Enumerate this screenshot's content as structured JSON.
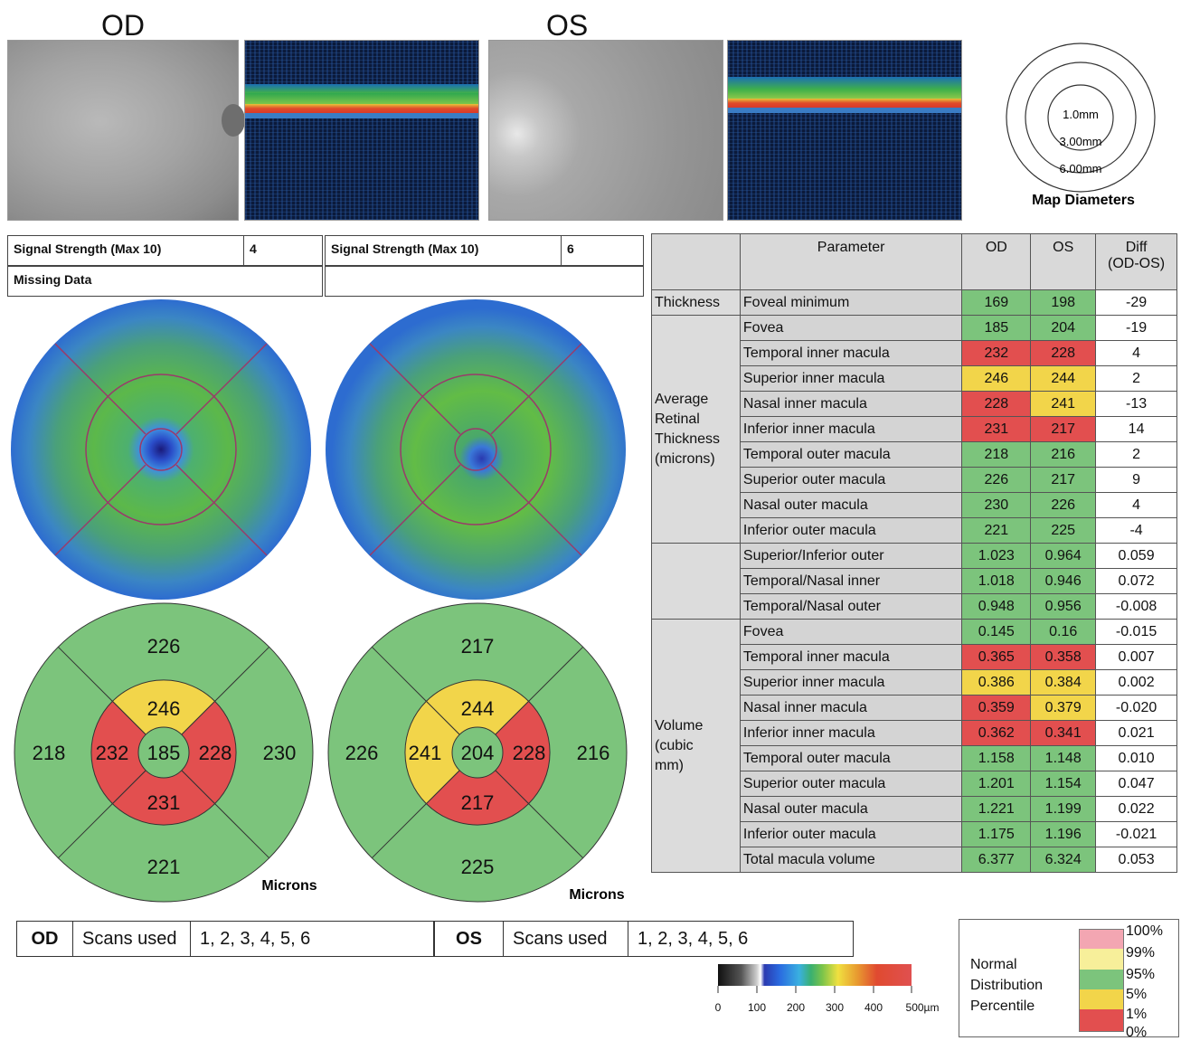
{
  "header": {
    "od_label": "OD",
    "os_label": "OS"
  },
  "map_diameters": {
    "inner": "1.0mm",
    "middle": "3.00mm",
    "outer": "6.00mm",
    "caption": "Map Diameters"
  },
  "signal": {
    "od_label": "Signal Strength (Max 10)",
    "od_value": "4",
    "os_label": "Signal Strength (Max 10)",
    "os_value": "6",
    "missing_label": "Missing Data"
  },
  "sector_map": {
    "units_label": "Microns",
    "od": {
      "superior_outer": "226",
      "superior_inner": "246",
      "temporal_outer": "218",
      "temporal_inner": "232",
      "center": "185",
      "nasal_inner": "228",
      "nasal_outer": "230",
      "inferior_inner": "231",
      "inferior_outer": "221"
    },
    "os": {
      "superior_outer": "217",
      "superior_inner": "244",
      "nasal_outer": "226",
      "nasal_inner": "241",
      "center": "204",
      "temporal_inner": "228",
      "temporal_outer": "216",
      "inferior_inner": "217",
      "inferior_outer": "225"
    }
  },
  "table": {
    "headers": {
      "parameter": "Parameter",
      "od": "OD",
      "os": "OS",
      "diff": "Diff",
      "diff2": "(OD-OS)"
    },
    "groups": {
      "thickness": "Thickness",
      "average": [
        "Average",
        "Retinal",
        "Thickness",
        "(microns)"
      ],
      "volume": [
        "Volume",
        "(cubic",
        "mm)"
      ]
    },
    "rows": [
      {
        "name": "Foveal minimum",
        "od": "169",
        "os": "198",
        "diff": "-29",
        "odc": "g",
        "osc": "g"
      },
      {
        "name": "Fovea",
        "od": "185",
        "os": "204",
        "diff": "-19",
        "odc": "g",
        "osc": "g"
      },
      {
        "name": "Temporal inner macula",
        "od": "232",
        "os": "228",
        "diff": "4",
        "odc": "r",
        "osc": "r"
      },
      {
        "name": "Superior inner macula",
        "od": "246",
        "os": "244",
        "diff": "2",
        "odc": "y",
        "osc": "y"
      },
      {
        "name": "Nasal inner macula",
        "od": "228",
        "os": "241",
        "diff": "-13",
        "odc": "r",
        "osc": "y"
      },
      {
        "name": "Inferior inner macula",
        "od": "231",
        "os": "217",
        "diff": "14",
        "odc": "r",
        "osc": "r"
      },
      {
        "name": "Temporal outer macula",
        "od": "218",
        "os": "216",
        "diff": "2",
        "odc": "g",
        "osc": "g"
      },
      {
        "name": "Superior outer macula",
        "od": "226",
        "os": "217",
        "diff": "9",
        "odc": "g",
        "osc": "g"
      },
      {
        "name": "Nasal outer macula",
        "od": "230",
        "os": "226",
        "diff": "4",
        "odc": "g",
        "osc": "g"
      },
      {
        "name": "Inferior outer macula",
        "od": "221",
        "os": "225",
        "diff": "-4",
        "odc": "g",
        "osc": "g"
      },
      {
        "name": "Superior/Inferior outer",
        "od": "1.023",
        "os": "0.964",
        "diff": "0.059",
        "odc": "g",
        "osc": "g"
      },
      {
        "name": "Temporal/Nasal inner",
        "od": "1.018",
        "os": "0.946",
        "diff": "0.072",
        "odc": "g",
        "osc": "g"
      },
      {
        "name": "Temporal/Nasal outer",
        "od": "0.948",
        "os": "0.956",
        "diff": "-0.008",
        "odc": "g",
        "osc": "g"
      },
      {
        "name": "Fovea",
        "od": "0.145",
        "os": "0.16",
        "diff": "-0.015",
        "odc": "g",
        "osc": "g"
      },
      {
        "name": "Temporal inner macula",
        "od": "0.365",
        "os": "0.358",
        "diff": "0.007",
        "odc": "r",
        "osc": "r"
      },
      {
        "name": "Superior inner macula",
        "od": "0.386",
        "os": "0.384",
        "diff": "0.002",
        "odc": "y",
        "osc": "y"
      },
      {
        "name": "Nasal inner macula",
        "od": "0.359",
        "os": "0.379",
        "diff": "-0.020",
        "odc": "r",
        "osc": "y"
      },
      {
        "name": "Inferior inner macula",
        "od": "0.362",
        "os": "0.341",
        "diff": "0.021",
        "odc": "r",
        "osc": "r"
      },
      {
        "name": "Temporal outer macula",
        "od": "1.158",
        "os": "1.148",
        "diff": "0.010",
        "odc": "g",
        "osc": "g"
      },
      {
        "name": "Superior outer macula",
        "od": "1.201",
        "os": "1.154",
        "diff": "0.047",
        "odc": "g",
        "osc": "g"
      },
      {
        "name": "Nasal outer macula",
        "od": "1.221",
        "os": "1.199",
        "diff": "0.022",
        "odc": "g",
        "osc": "g"
      },
      {
        "name": "Inferior outer macula",
        "od": "1.175",
        "os": "1.196",
        "diff": "-0.021",
        "odc": "g",
        "osc": "g"
      },
      {
        "name": "Total macula volume",
        "od": "6.377",
        "os": "6.324",
        "diff": "0.053",
        "odc": "g",
        "osc": "g"
      }
    ]
  },
  "scans": {
    "od_label": "OD",
    "od_scans_label": "Scans used",
    "od_scans": "1, 2, 3, 4, 5, 6",
    "os_label": "OS",
    "os_scans_label": "Scans used",
    "os_scans": "1, 2, 3, 4, 5, 6"
  },
  "colorbar": {
    "ticks": [
      "0",
      "100",
      "200",
      "300",
      "400",
      "500µm"
    ]
  },
  "legend": {
    "title_lines": [
      "Normal",
      "Distribution",
      "Percentile"
    ],
    "percentiles": [
      "100%",
      "99%",
      "95%",
      "5%",
      "1%",
      "0%"
    ]
  },
  "colors": {
    "green": "#7cc47c",
    "yellow": "#f2d54a",
    "red": "#e24f4f",
    "pink": "#f3a6b2",
    "pale_yellow": "#f7ef9a"
  }
}
